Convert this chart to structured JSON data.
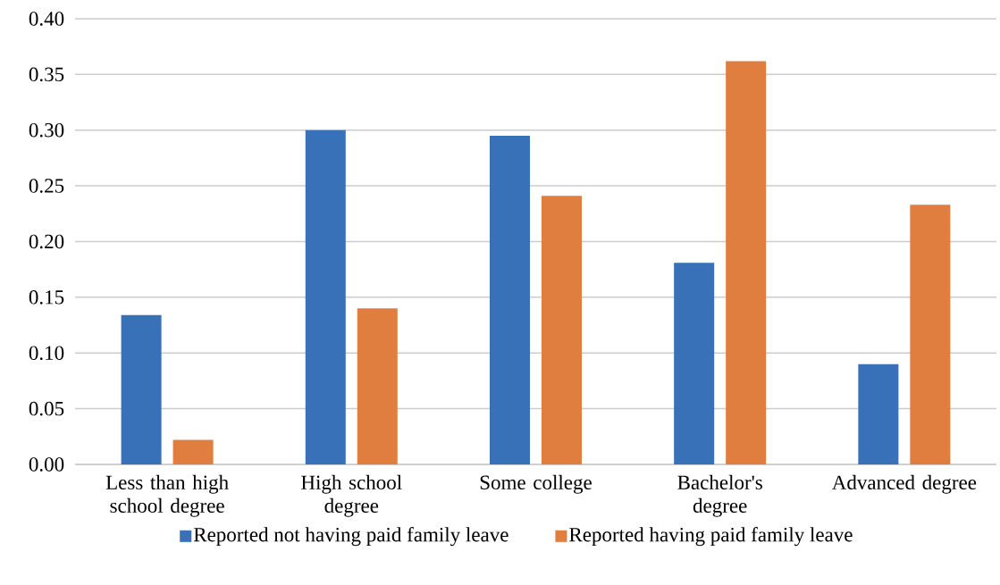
{
  "chart_data": {
    "type": "bar",
    "categories": [
      "Less than high school degree",
      "High school degree",
      "Some college",
      "Bachelor's degree",
      "Advanced degree"
    ],
    "series": [
      {
        "name": "Reported not having paid family leave",
        "color": "#3871b7",
        "values": [
          0.134,
          0.3,
          0.295,
          0.181,
          0.09
        ]
      },
      {
        "name": "Reported having paid family leave",
        "color": "#e07e3f",
        "values": [
          0.022,
          0.14,
          0.241,
          0.362,
          0.233
        ]
      }
    ],
    "ylim": [
      0,
      0.4
    ],
    "yticks": [
      {
        "value": 0,
        "label": "0.00"
      },
      {
        "value": 0.05,
        "label": "0.05"
      },
      {
        "value": 0.1,
        "label": "0.10"
      },
      {
        "value": 0.15,
        "label": "0.15"
      },
      {
        "value": 0.2,
        "label": "0.20"
      },
      {
        "value": 0.25,
        "label": "0.25"
      },
      {
        "value": 0.3,
        "label": "0.30"
      },
      {
        "value": 0.35,
        "label": "0.35"
      },
      {
        "value": 0.4,
        "label": "0.40"
      }
    ],
    "grid": "y",
    "legend": "bottom"
  }
}
